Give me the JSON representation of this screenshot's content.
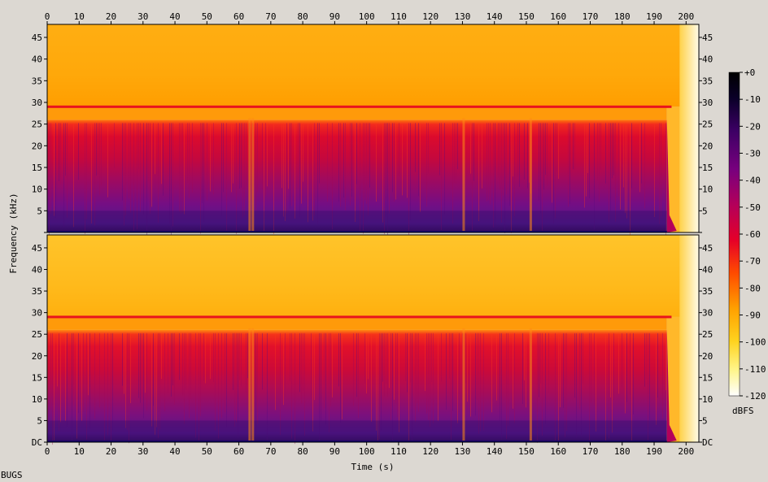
{
  "chart_data": {
    "type": "heatmap",
    "title": "",
    "xlabel": "Time (s)",
    "ylabel": "Frequency (kHz)",
    "x_range": [
      0,
      204
    ],
    "x_ticks": [
      0,
      10,
      20,
      30,
      40,
      50,
      60,
      70,
      80,
      90,
      100,
      110,
      120,
      130,
      140,
      150,
      160,
      170,
      180,
      190,
      200
    ],
    "y_range_khz": [
      0,
      48
    ],
    "y_ticks": [
      "DC",
      "5",
      "10",
      "15",
      "20",
      "25",
      "30",
      "35",
      "40",
      "45"
    ],
    "channels": [
      {
        "name": "",
        "noise_floor_khz": 29,
        "regions": [
          {
            "freq_khz": [
              29,
              48
            ],
            "level_dbfs": -95
          },
          {
            "freq_khz": [
              26,
              29
            ],
            "level_dbfs": -90
          },
          {
            "freq_khz": [
              0,
              26
            ],
            "level_dbfs": -65
          }
        ],
        "bright_line_khz": 29,
        "content_ends_s": 194,
        "silence_after_s": 198
      },
      {
        "name": "",
        "noise_floor_khz": 29,
        "regions": [
          {
            "freq_khz": [
              29,
              48
            ],
            "level_dbfs": -95
          },
          {
            "freq_khz": [
              26,
              29
            ],
            "level_dbfs": -90
          },
          {
            "freq_khz": [
              0,
              26
            ],
            "level_dbfs": -65
          }
        ],
        "bright_line_khz": 29,
        "content_ends_s": 194,
        "silence_after_s": 198
      }
    ],
    "colorbar": {
      "label": "dBFS",
      "ticks": [
        "+0",
        "-10",
        "-20",
        "-30",
        "-40",
        "-50",
        "-60",
        "-70",
        "-80",
        "-90",
        "-100",
        "-110",
        "-120"
      ],
      "range_dbfs": [
        -120,
        0
      ],
      "colors": [
        "#ffffff",
        "#fff58a",
        "#ffd21e",
        "#ffa000",
        "#ff4b00",
        "#e60028",
        "#b4005a",
        "#78007e",
        "#3c0064",
        "#0a0028",
        "#000000"
      ]
    }
  },
  "footer": {
    "label": "BUGS"
  }
}
